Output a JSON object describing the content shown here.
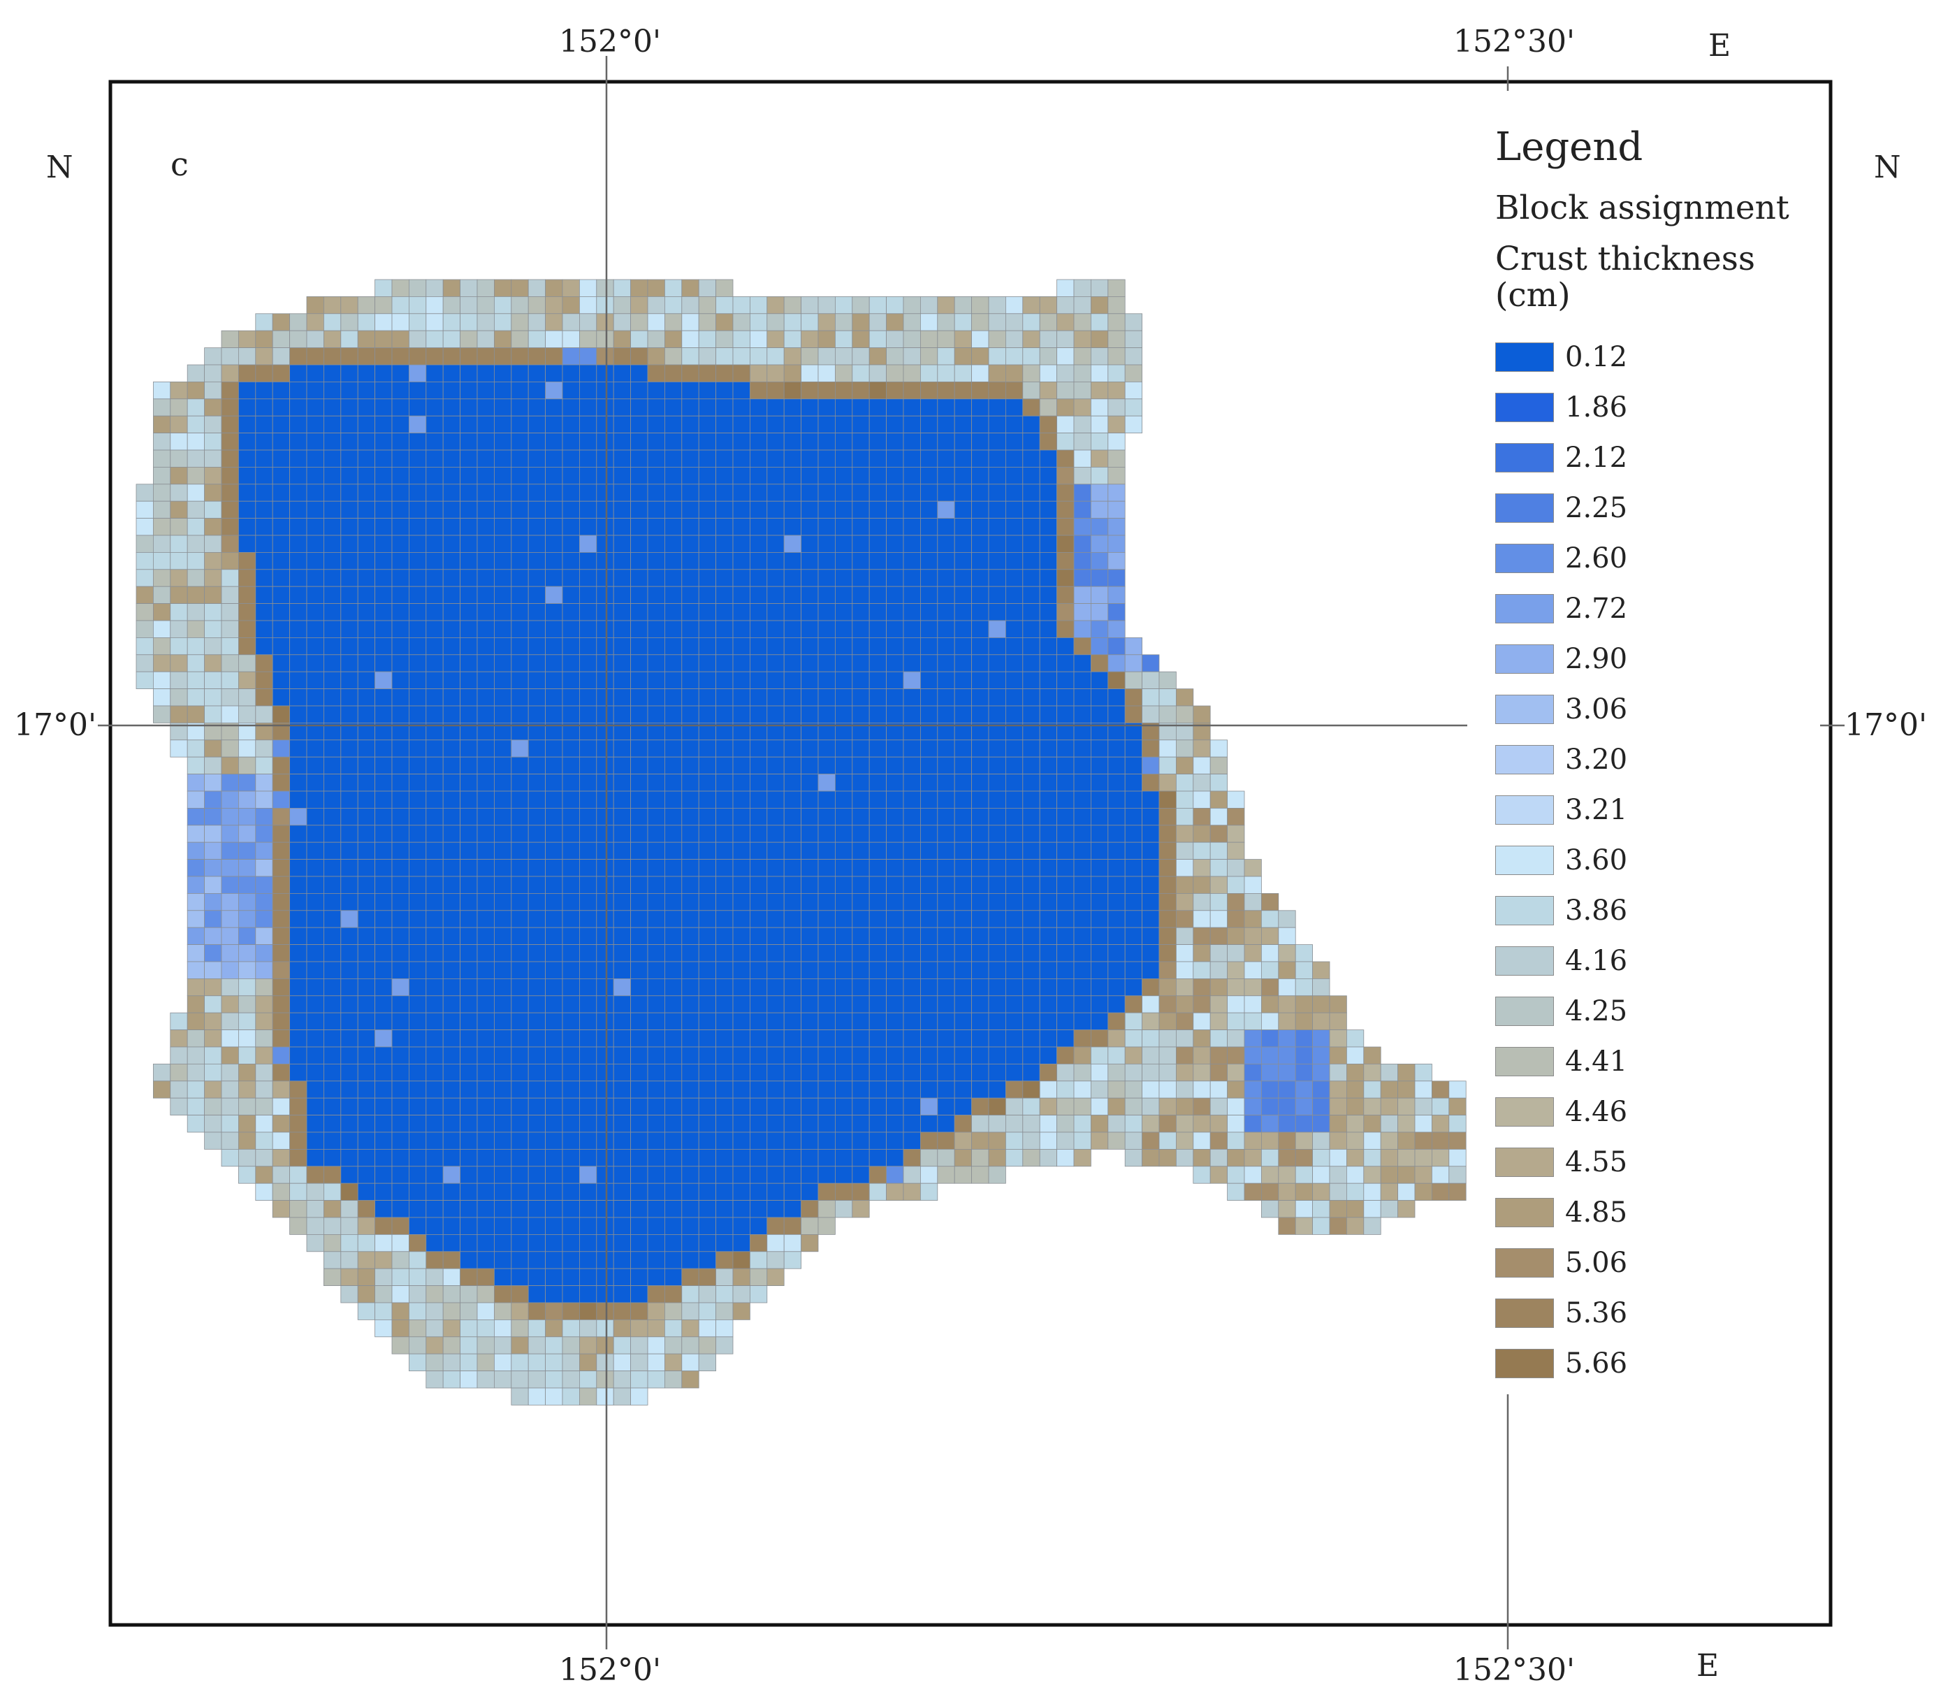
{
  "panel_label": "c",
  "coordinates": {
    "lon_left": "152°0'",
    "lon_right": "152°30'",
    "lat": "17°0'",
    "north": "N",
    "east": "E"
  },
  "legend": {
    "title": "Legend",
    "subtitle": "Block assignment",
    "variable": "Crust thickness (cm)",
    "classes": [
      {
        "value": "0.12",
        "color": "#0b5ed8"
      },
      {
        "value": "1.86",
        "color": "#2263df"
      },
      {
        "value": "2.12",
        "color": "#3b73e0"
      },
      {
        "value": "2.25",
        "color": "#4f80e2"
      },
      {
        "value": "2.60",
        "color": "#628fe6"
      },
      {
        "value": "2.72",
        "color": "#79a0ea"
      },
      {
        "value": "2.90",
        "color": "#8fb0ee"
      },
      {
        "value": "3.06",
        "color": "#a1bff1"
      },
      {
        "value": "3.20",
        "color": "#b3cdf5"
      },
      {
        "value": "3.21",
        "color": "#bed8f6"
      },
      {
        "value": "3.60",
        "color": "#c9e6f8"
      },
      {
        "value": "3.86",
        "color": "#bcd8e4"
      },
      {
        "value": "4.16",
        "color": "#b9cdd4"
      },
      {
        "value": "4.25",
        "color": "#b7c6c6"
      },
      {
        "value": "4.41",
        "color": "#b8beb4"
      },
      {
        "value": "4.46",
        "color": "#b9b49e"
      },
      {
        "value": "4.55",
        "color": "#b5a98d"
      },
      {
        "value": "4.85",
        "color": "#ae9d7c"
      },
      {
        "value": "5.06",
        "color": "#a58e6c"
      },
      {
        "value": "5.36",
        "color": "#9d845f"
      },
      {
        "value": "5.66",
        "color": "#957a52"
      }
    ]
  }
}
